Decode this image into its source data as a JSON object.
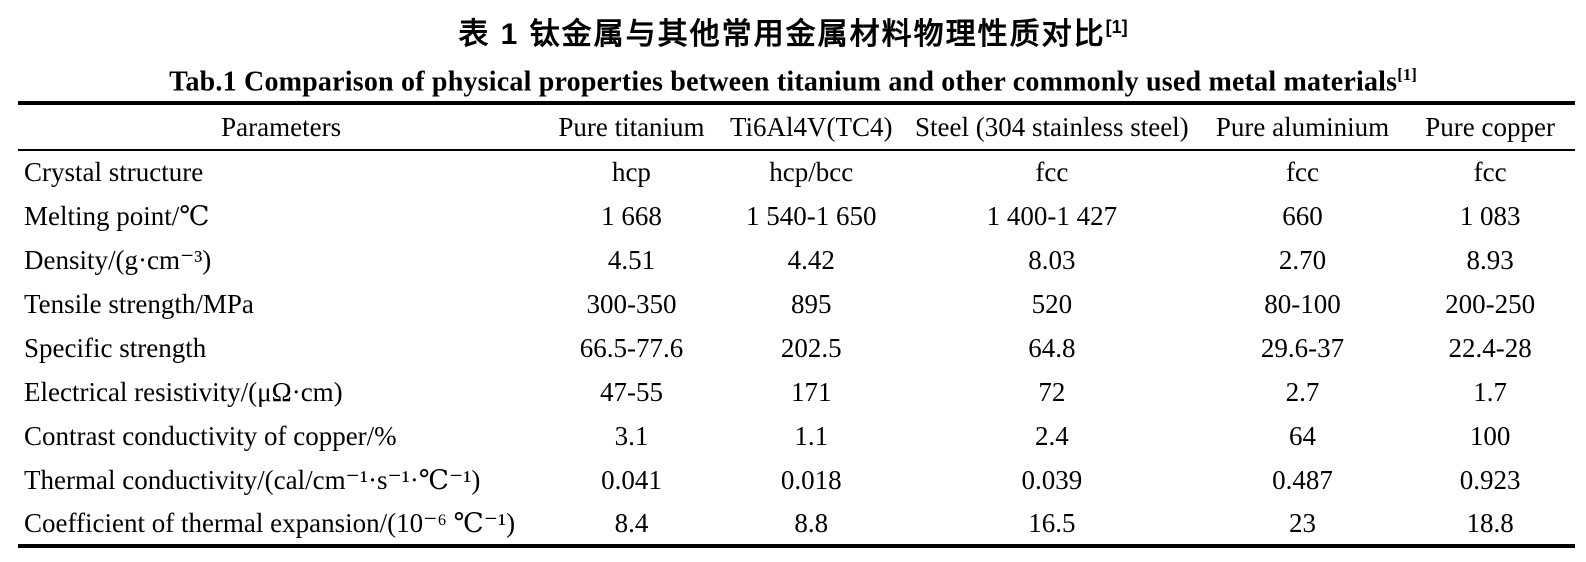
{
  "titles": {
    "cn": "表 1  钛金属与其他常用金属材料物理性质对比",
    "cn_ref": "[1]",
    "en": "Tab.1 Comparison of physical properties between titanium and other commonly used metal materials",
    "en_ref": "[1]"
  },
  "table": {
    "columns": [
      "Parameters",
      "Pure titanium",
      "Ti6Al4V(TC4)",
      "Steel (304 stainless steel)",
      "Pure aluminium",
      "Pure copper"
    ],
    "rows": [
      {
        "label": "Crystal structure",
        "values": [
          "hcp",
          "hcp/bcc",
          "fcc",
          "fcc",
          "fcc"
        ]
      },
      {
        "label": "Melting point/℃",
        "values": [
          "1 668",
          "1 540-1 650",
          "1 400-1 427",
          "660",
          "1 083"
        ]
      },
      {
        "label": "Density/(g·cm⁻³)",
        "values": [
          "4.51",
          "4.42",
          "8.03",
          "2.70",
          "8.93"
        ]
      },
      {
        "label": "Tensile strength/MPa",
        "values": [
          "300-350",
          "895",
          "520",
          "80-100",
          "200-250"
        ]
      },
      {
        "label": "Specific strength",
        "values": [
          "66.5-77.6",
          "202.5",
          "64.8",
          "29.6-37",
          "22.4-28"
        ]
      },
      {
        "label": "Electrical resistivity/(μΩ·cm)",
        "values": [
          "47-55",
          "171",
          "72",
          "2.7",
          "1.7"
        ]
      },
      {
        "label": "Contrast conductivity of copper/%",
        "values": [
          "3.1",
          "1.1",
          "2.4",
          "64",
          "100"
        ]
      },
      {
        "label": "Thermal conductivity/(cal/cm⁻¹·s⁻¹·℃⁻¹)",
        "values": [
          "0.041",
          "0.018",
          "0.039",
          "0.487",
          "0.923"
        ]
      },
      {
        "label": "Coefficient of thermal expansion/(10⁻⁶ ℃⁻¹)",
        "values": [
          "8.4",
          "8.8",
          "16.5",
          "23",
          "18.8"
        ]
      }
    ]
  },
  "colors": {
    "background": "#ffffff",
    "text": "#000000",
    "rule": "#000000"
  }
}
